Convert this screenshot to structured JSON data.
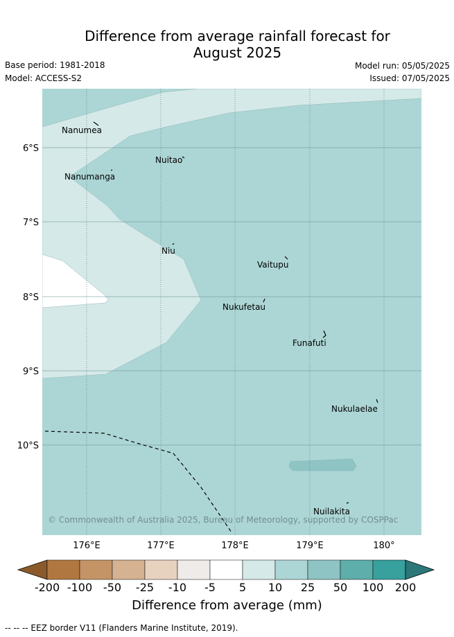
{
  "header": {
    "title_line1": "Difference from average rainfall forecast for",
    "title_line2": "August 2025",
    "base_period": "Base period: 1981-2018",
    "model": "Model: ACCESS-S2",
    "model_run": "Model run: 05/05/2025",
    "issued": "Issued: 07/05/2025"
  },
  "map": {
    "region": "Tuvalu",
    "lat_labels": [
      "6°S",
      "7°S",
      "8°S",
      "9°S",
      "10°S"
    ],
    "lon_labels": [
      "176°E",
      "177°E",
      "178°E",
      "179°E",
      "180°"
    ],
    "places": [
      "Nanumea",
      "Nuitao",
      "Nanumanga",
      "Niu",
      "Vaitupu",
      "Nukufetau",
      "Funafuti",
      "Nukulaelae",
      "Nuilakita"
    ],
    "copyright": "© Commonwealth of Australia 2025, Bureau of Meteorology, supported by COSPPac",
    "colors": {
      "class_5_10": "#d5e9e8",
      "class_10_25": "#acd6d5",
      "class_25_50": "#8ec4c3",
      "no_change": "#ffffff"
    }
  },
  "colorbar": {
    "ticks": [
      "-200",
      "-100",
      "-50",
      "-25",
      "-10",
      "-5",
      "5",
      "10",
      "25",
      "50",
      "100",
      "200"
    ],
    "colors": [
      "#8b5a2b",
      "#b07840",
      "#c49467",
      "#d5b291",
      "#e7d2c0",
      "#efebe8",
      "#ffffff",
      "#d5e9e8",
      "#acd6d5",
      "#8ec4c3",
      "#5eaeab",
      "#38a09d",
      "#2c7777"
    ],
    "label": "Difference from average (mm)"
  },
  "footnote": "-- -- -- EEZ border V11 (Flanders Marine Institute, 2019)."
}
